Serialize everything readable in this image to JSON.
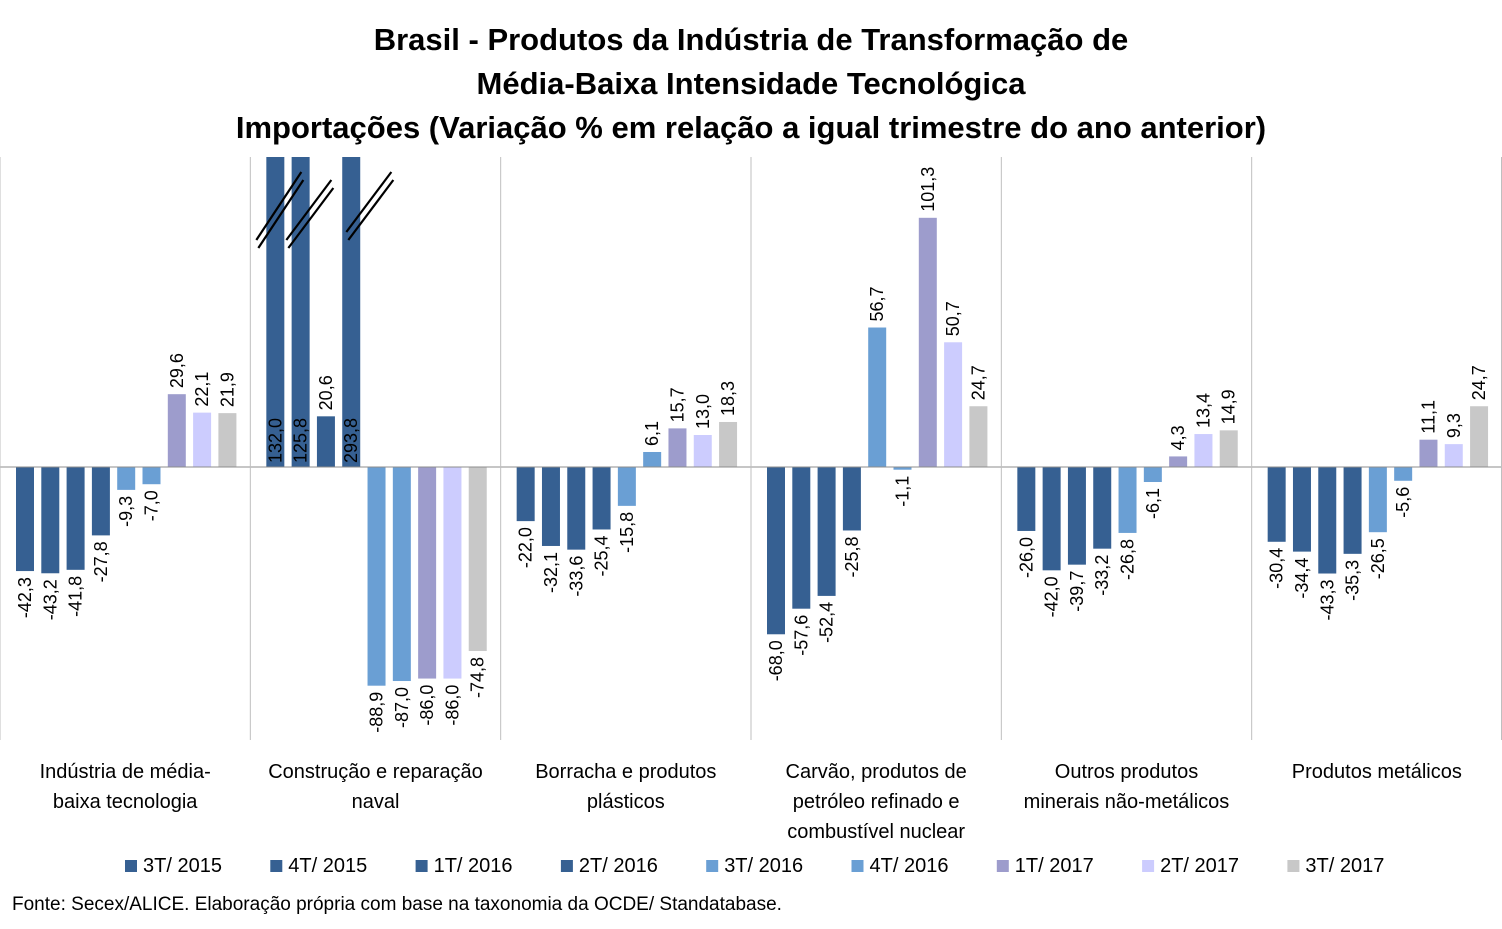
{
  "chart_data": {
    "type": "bar",
    "title_lines": [
      "Brasil - Produtos da Indústria de Transformação de",
      "Média-Baixa Intensidade Tecnológica",
      "Importações (Variação % em relação a igual trimestre do ano anterior)"
    ],
    "categories": [
      [
        "Indústria de média-",
        "baixa tecnologia"
      ],
      [
        "Construção e reparação",
        "naval"
      ],
      [
        "Borracha e produtos",
        "plásticos"
      ],
      [
        "Carvão, produtos de",
        "petróleo refinado e",
        "combustível nuclear"
      ],
      [
        "Outros produtos",
        "minerais não-metálicos"
      ],
      [
        "Produtos metálicos"
      ]
    ],
    "series": [
      {
        "name": "3T/ 2015",
        "color": "#366092",
        "values": [
          -42.3,
          132.0,
          -22.0,
          -68.0,
          -26.0,
          -30.4
        ],
        "labels": [
          "-42,3",
          "132,0",
          "-22,0",
          "-68,0",
          "-26,0",
          "-30,4"
        ]
      },
      {
        "name": "4T/ 2015",
        "color": "#366092",
        "values": [
          -43.2,
          125.8,
          -32.1,
          -57.6,
          -42.0,
          -34.4
        ],
        "labels": [
          "-43,2",
          "125,8",
          "-32,1",
          "-57,6",
          "-42,0",
          "-34,4"
        ]
      },
      {
        "name": "1T/ 2016",
        "color": "#366092",
        "values": [
          -41.8,
          20.6,
          -33.6,
          -52.4,
          -39.7,
          -43.3
        ],
        "labels": [
          "-41,8",
          "20,6",
          "-33,6",
          "-52,4",
          "-39,7",
          "-43,3"
        ]
      },
      {
        "name": "2T/ 2016",
        "color": "#366092",
        "values": [
          -27.8,
          293.8,
          -25.4,
          -25.8,
          -33.2,
          -35.3
        ],
        "labels": [
          "-27,8",
          "293,8",
          "-25,4",
          "-25,8",
          "-33,2",
          "-35,3"
        ]
      },
      {
        "name": "3T/ 2016",
        "color": "#6a9fd4",
        "values": [
          -9.3,
          -88.9,
          -15.8,
          56.7,
          -26.8,
          -26.5
        ],
        "labels": [
          "-9,3",
          "-88,9",
          "-15,8",
          "56,7",
          "-26,8",
          "-26,5"
        ]
      },
      {
        "name": "4T/ 2016",
        "color": "#6a9fd4",
        "values": [
          -7.0,
          -87.0,
          6.1,
          -1.1,
          -6.1,
          -5.6
        ],
        "labels": [
          "-7,0",
          "-87,0",
          "6,1",
          "-1,1",
          "-6,1",
          "-5,6"
        ]
      },
      {
        "name": "1T/ 2017",
        "color": "#9d9ccc",
        "values": [
          29.6,
          -86.0,
          15.7,
          101.3,
          4.3,
          11.1
        ],
        "labels": [
          "29,6",
          "-86,0",
          "15,7",
          "101,3",
          "4,3",
          "11,1"
        ]
      },
      {
        "name": "2T/ 2017",
        "color": "#ccccfe",
        "values": [
          22.1,
          -86.0,
          13.0,
          50.7,
          13.4,
          9.3
        ],
        "labels": [
          "22,1",
          "-86,0",
          "13,0",
          "50,7",
          "13,4",
          "9,3"
        ]
      },
      {
        "name": "3T/ 2017",
        "color": "#c8c8c8",
        "values": [
          21.9,
          -74.8,
          18.3,
          24.7,
          14.9,
          24.7
        ],
        "labels": [
          "21,9",
          "-74,8",
          "18,3",
          "24,7",
          "14,9",
          "24,7"
        ]
      }
    ],
    "axis_break": {
      "category_index": 1,
      "series_indices": [
        0,
        1,
        3
      ]
    },
    "ylim": [
      -110,
      126
    ],
    "grid": false,
    "legend_position": "bottom",
    "source": "Fonte: Secex/ALICE. Elaboração própria com base na taxonomia da OCDE/ Standatabase."
  }
}
